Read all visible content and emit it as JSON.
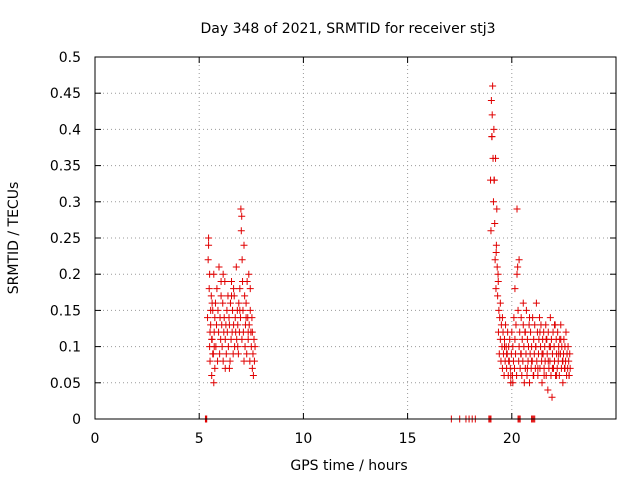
{
  "chart_data": {
    "type": "scatter",
    "title": "Day 348 of 2021, SRMTID for receiver stj3",
    "xlabel": "GPS time / hours",
    "ylabel": "SRMTID / TECUs",
    "xlim": [
      0,
      25
    ],
    "ylim": [
      0,
      0.5
    ],
    "xticks": [
      "0",
      "5",
      "10",
      "15",
      "20"
    ],
    "xtick_values": [
      0,
      5,
      10,
      15,
      20
    ],
    "yticks": [
      "0",
      "0.05",
      "0.1",
      "0.15",
      "0.2",
      "0.25",
      "0.3",
      "0.35",
      "0.4",
      "0.45",
      "0.5"
    ],
    "ytick_values": [
      0,
      0.05,
      0.1,
      0.15,
      0.2,
      0.25,
      0.3,
      0.35,
      0.4,
      0.45,
      0.5
    ],
    "grid": true,
    "marker": "plus",
    "color": "#e00000",
    "series": [
      {
        "x": [
          5.4,
          5.43,
          5.45,
          5.48,
          5.5,
          5.52,
          5.55,
          5.58,
          5.6,
          5.62,
          5.65,
          5.68,
          5.7,
          5.72,
          5.75,
          5.78,
          5.8,
          5.83,
          5.85,
          5.88,
          5.9,
          5.93,
          5.95,
          5.98,
          6.0,
          6.03,
          6.05,
          6.08,
          6.1,
          6.13,
          6.15,
          6.18,
          6.2,
          6.23,
          6.25,
          6.28,
          6.3,
          6.33,
          6.35,
          6.38,
          6.4,
          6.43,
          6.45,
          6.48,
          6.5,
          6.53,
          6.55,
          6.58,
          6.6,
          6.63,
          6.65,
          6.68,
          6.7,
          6.73,
          6.75,
          6.78,
          6.8,
          6.83,
          6.85,
          6.88,
          6.9,
          6.93,
          6.95,
          6.98,
          7.0,
          7.02,
          7.04,
          7.06,
          7.08,
          7.1,
          7.12,
          7.15,
          7.18,
          7.2,
          7.22,
          7.25,
          7.28,
          7.3,
          7.33,
          7.35,
          7.38,
          7.4,
          7.43,
          7.45,
          7.48,
          7.5,
          7.53,
          7.55,
          7.58,
          7.6,
          7.63,
          7.65,
          7.68,
          5.45,
          5.5,
          5.55,
          5.6,
          5.65,
          5.7,
          5.75,
          6.05,
          6.25,
          6.55,
          6.95,
          7.05,
          7.15,
          7.25,
          7.45,
          7.55,
          5.52,
          5.62,
          5.72,
          6.15,
          6.45,
          6.65,
          6.85,
          7.35
        ],
        "y": [
          0.14,
          0.22,
          0.25,
          0.18,
          0.1,
          0.08,
          0.13,
          0.17,
          0.06,
          0.11,
          0.15,
          0.09,
          0.2,
          0.12,
          0.14,
          0.16,
          0.1,
          0.13,
          0.18,
          0.08,
          0.15,
          0.12,
          0.21,
          0.09,
          0.14,
          0.11,
          0.17,
          0.13,
          0.1,
          0.16,
          0.08,
          0.12,
          0.14,
          0.19,
          0.11,
          0.13,
          0.09,
          0.15,
          0.12,
          0.17,
          0.1,
          0.14,
          0.13,
          0.08,
          0.16,
          0.11,
          0.19,
          0.12,
          0.15,
          0.09,
          0.13,
          0.17,
          0.1,
          0.14,
          0.12,
          0.21,
          0.11,
          0.15,
          0.13,
          0.09,
          0.16,
          0.12,
          0.18,
          0.14,
          0.29,
          0.26,
          0.28,
          0.22,
          0.19,
          0.15,
          0.12,
          0.24,
          0.17,
          0.1,
          0.13,
          0.16,
          0.09,
          0.19,
          0.14,
          0.11,
          0.2,
          0.13,
          0.08,
          0.15,
          0.12,
          0.1,
          0.14,
          0.07,
          0.09,
          0.06,
          0.11,
          0.08,
          0.1,
          0.24,
          0.2,
          0.15,
          0.11,
          0.09,
          0.05,
          0.07,
          0.19,
          0.07,
          0.17,
          0.15,
          0.11,
          0.08,
          0.14,
          0.18,
          0.12,
          0.12,
          0.16,
          0.1,
          0.2,
          0.07,
          0.18,
          0.1,
          0.12
        ]
      },
      {
        "x": [
          18.98,
          19.0,
          19.02,
          19.04,
          19.06,
          19.08,
          19.1,
          19.12,
          19.14,
          19.16,
          19.18,
          19.2,
          19.22,
          19.24,
          19.26,
          19.28,
          19.3,
          19.32,
          19.34,
          19.36,
          19.38,
          19.4,
          19.42,
          19.45,
          19.48,
          19.5,
          19.53,
          19.55,
          19.58,
          19.6,
          19.63,
          19.65,
          19.68,
          19.7,
          19.73,
          19.75,
          19.78,
          19.8,
          19.83,
          19.85,
          19.88,
          19.9,
          19.93,
          19.95,
          19.98,
          20.0,
          20.03,
          20.05,
          20.08,
          20.1,
          20.13,
          20.15,
          20.18,
          20.2,
          20.23,
          20.25,
          20.28,
          20.3,
          20.33,
          20.35,
          20.38,
          20.4,
          20.43,
          20.45,
          20.48,
          20.5,
          20.53,
          20.55,
          20.58,
          20.6,
          20.63,
          20.65,
          20.68,
          20.7,
          20.73,
          20.75,
          20.78,
          20.8,
          20.83,
          20.85,
          20.88,
          20.9,
          20.93,
          20.95,
          20.98,
          21.0,
          21.03,
          21.05,
          21.08,
          21.1,
          21.13,
          21.15,
          21.18,
          21.2,
          21.23,
          21.25,
          21.28,
          21.3,
          21.33,
          21.35,
          21.38,
          21.4,
          21.43,
          21.45,
          21.48,
          21.5,
          21.53,
          21.55,
          21.58,
          21.6,
          21.63,
          21.65,
          21.68,
          21.7,
          21.73,
          21.75,
          21.78,
          21.8,
          21.83,
          21.85,
          21.88,
          21.9,
          21.93,
          21.95,
          21.98,
          22.0,
          22.03,
          22.05,
          22.08,
          22.1,
          22.13,
          22.15,
          22.18,
          22.2,
          22.23,
          22.25,
          22.28,
          22.3,
          22.33,
          22.35,
          22.38,
          22.4,
          22.43,
          22.45,
          22.48,
          22.5,
          22.53,
          22.55,
          22.58,
          22.6,
          22.63,
          22.65,
          22.68,
          22.7,
          22.73,
          22.75,
          22.78,
          22.8,
          19.05,
          19.15,
          19.25,
          19.35,
          19.45,
          19.55,
          19.65,
          19.75,
          19.85,
          19.95,
          20.05,
          20.15,
          20.25,
          20.35,
          20.45,
          20.55,
          20.65,
          20.75,
          20.85,
          20.95,
          21.05,
          21.15,
          21.25,
          21.35,
          21.45,
          21.55,
          21.65,
          21.75,
          21.85,
          21.95,
          22.05,
          22.15,
          22.25,
          22.35,
          22.45,
          22.55,
          22.65,
          22.75
        ],
        "y": [
          0.33,
          0.26,
          0.44,
          0.39,
          0.42,
          0.46,
          0.36,
          0.3,
          0.4,
          0.33,
          0.27,
          0.22,
          0.36,
          0.18,
          0.24,
          0.29,
          0.21,
          0.17,
          0.2,
          0.12,
          0.15,
          0.09,
          0.14,
          0.11,
          0.08,
          0.13,
          0.1,
          0.07,
          0.12,
          0.09,
          0.06,
          0.11,
          0.08,
          0.13,
          0.1,
          0.07,
          0.09,
          0.12,
          0.06,
          0.1,
          0.08,
          0.11,
          0.07,
          0.05,
          0.09,
          0.12,
          0.06,
          0.1,
          0.08,
          0.14,
          0.07,
          0.11,
          0.09,
          0.13,
          0.06,
          0.29,
          0.21,
          0.15,
          0.08,
          0.1,
          0.12,
          0.07,
          0.09,
          0.14,
          0.06,
          0.11,
          0.08,
          0.13,
          0.1,
          0.05,
          0.12,
          0.07,
          0.09,
          0.15,
          0.06,
          0.11,
          0.08,
          0.1,
          0.13,
          0.05,
          0.09,
          0.12,
          0.07,
          0.1,
          0.08,
          0.14,
          0.06,
          0.11,
          0.09,
          0.13,
          0.07,
          0.1,
          0.16,
          0.08,
          0.12,
          0.06,
          0.09,
          0.11,
          0.14,
          0.07,
          0.1,
          0.13,
          0.08,
          0.05,
          0.11,
          0.09,
          0.12,
          0.07,
          0.1,
          0.08,
          0.13,
          0.06,
          0.11,
          0.09,
          0.04,
          0.12,
          0.07,
          0.1,
          0.08,
          0.14,
          0.06,
          0.11,
          0.03,
          0.09,
          0.12,
          0.07,
          0.1,
          0.08,
          0.13,
          0.06,
          0.11,
          0.09,
          0.07,
          0.12,
          0.08,
          0.1,
          0.06,
          0.11,
          0.09,
          0.13,
          0.07,
          0.1,
          0.08,
          0.05,
          0.09,
          0.11,
          0.07,
          0.1,
          0.08,
          0.12,
          0.06,
          0.09,
          0.07,
          0.1,
          0.08,
          0.06,
          0.09,
          0.07,
          0.39,
          0.33,
          0.23,
          0.19,
          0.16,
          0.14,
          0.1,
          0.09,
          0.08,
          0.06,
          0.05,
          0.18,
          0.2,
          0.22,
          0.09,
          0.16,
          0.12,
          0.07,
          0.14,
          0.08,
          0.06,
          0.1,
          0.07,
          0.12,
          0.09,
          0.06,
          0.11,
          0.08,
          0.1,
          0.07,
          0.13,
          0.06,
          0.09,
          0.11,
          0.08,
          0.07,
          0.09,
          0.06
        ]
      },
      {
        "x": [
          5.3,
          5.33,
          5.36,
          17.1,
          17.5,
          17.8,
          17.95,
          18.1,
          18.25,
          18.9,
          18.95,
          19.0,
          20.3,
          20.35,
          20.4,
          20.95,
          21.0,
          21.05,
          21.1
        ],
        "y": [
          0,
          0,
          0,
          0,
          0,
          0,
          0,
          0,
          0,
          0,
          0,
          0,
          0,
          0,
          0,
          0,
          0,
          0,
          0
        ]
      }
    ]
  }
}
